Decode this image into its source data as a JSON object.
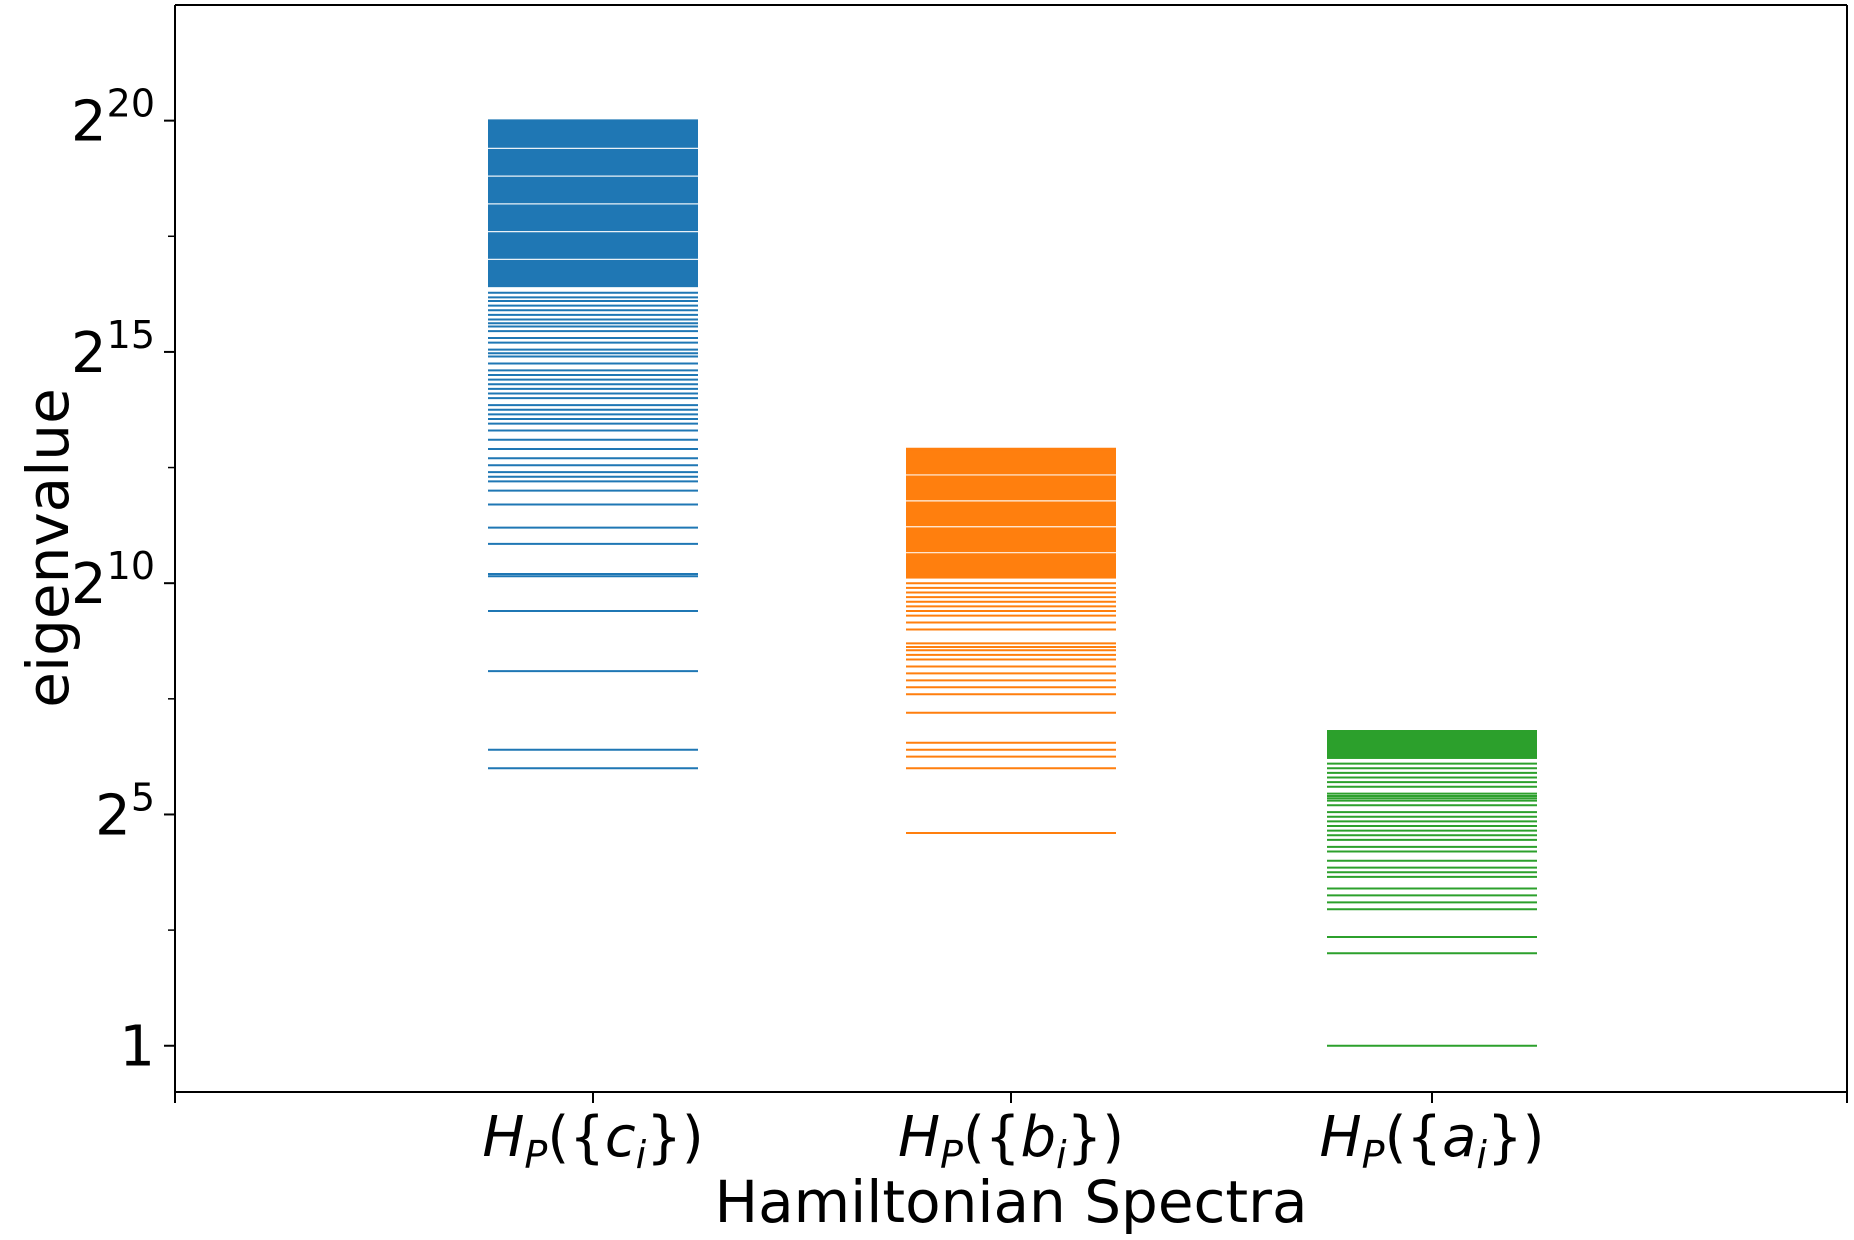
{
  "chart_data": {
    "type": "eventplot",
    "xlabel": "Hamiltonian Spectra",
    "ylabel": "eigenvalue",
    "yscale": "log2",
    "ylim_log2": [
      -1,
      22.5
    ],
    "yticks": [
      {
        "log2": 0,
        "base": "1",
        "exp": ""
      },
      {
        "log2": 5,
        "base": "2",
        "exp": "5"
      },
      {
        "log2": 10,
        "base": "2",
        "exp": "10"
      },
      {
        "log2": 15,
        "base": "2",
        "exp": "15"
      },
      {
        "log2": 20,
        "base": "2",
        "exp": "20"
      }
    ],
    "minor_yticks_log2": [
      2.5,
      7.5,
      12.5,
      17.5
    ],
    "grid": false,
    "legend": "none",
    "series": [
      {
        "label_main": "H",
        "label_sub": "P",
        "label_set": "c",
        "label_set_sub": "i",
        "color": "#1f77b4",
        "max_log2": 20,
        "dense_from_log2": 16.4,
        "sparse_log2": [
          6.0,
          6.4,
          8.1,
          9.4,
          10.15,
          10.2,
          10.85,
          11.2,
          11.7,
          12.0,
          12.2,
          12.3,
          12.4,
          12.55,
          12.7,
          12.9,
          13.1,
          13.3,
          13.45,
          13.55,
          13.65,
          13.75,
          13.85,
          14.0,
          14.1,
          14.2,
          14.3,
          14.4,
          14.5,
          14.6,
          14.75,
          14.9,
          14.97,
          15.05,
          15.2,
          15.3,
          15.45,
          15.55,
          15.62,
          15.7,
          15.8,
          15.9,
          16.0,
          16.1,
          16.18,
          16.28
        ]
      },
      {
        "label_main": "H",
        "label_sub": "P",
        "label_set": "b",
        "label_set_sub": "i",
        "color": "#ff7f0e",
        "max_log2": 12.9,
        "dense_from_log2": 10.1,
        "sparse_log2": [
          4.6,
          6.0,
          6.25,
          6.4,
          6.55,
          7.2,
          7.6,
          7.75,
          7.9,
          8.05,
          8.2,
          8.35,
          8.45,
          8.55,
          8.62,
          8.7,
          9.0,
          9.15,
          9.3,
          9.4,
          9.5,
          9.6,
          9.7,
          9.8,
          9.9,
          10.0
        ]
      },
      {
        "label_main": "H",
        "label_sub": "P",
        "label_set": "a",
        "label_set_sub": "i",
        "color": "#2ca02c",
        "max_log2": 6.8,
        "dense_from_log2": 6.2,
        "sparse_log2": [
          0.0,
          2.0,
          2.35,
          2.95,
          3.1,
          3.25,
          3.4,
          3.65,
          3.75,
          3.85,
          4.0,
          4.2,
          4.3,
          4.45,
          4.55,
          4.65,
          4.75,
          4.85,
          4.95,
          5.05,
          5.2,
          5.3,
          5.35,
          5.4,
          5.45,
          5.6,
          5.7,
          5.8,
          5.9,
          6.0,
          6.1
        ]
      }
    ]
  }
}
